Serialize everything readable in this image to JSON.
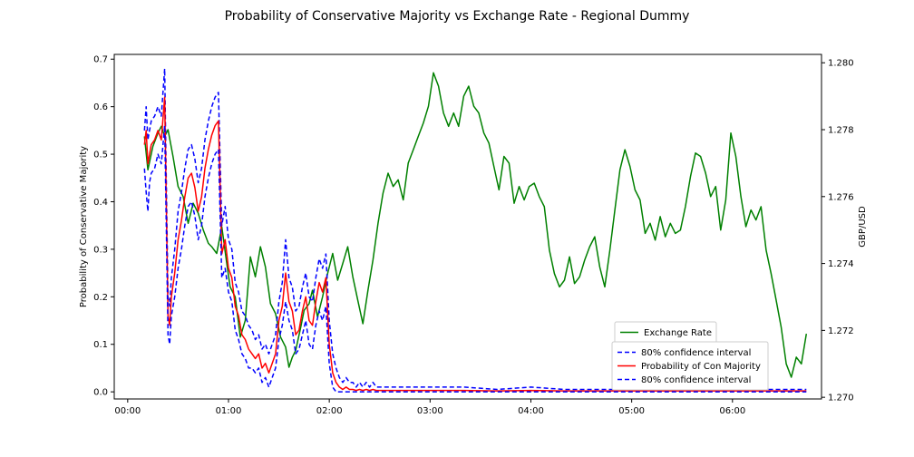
{
  "chart_data": {
    "type": "line",
    "title": "Probability of Conservative Majority vs Exchange Rate - Regional Dummy",
    "xlabel": "",
    "ylabel_left": "Probability of Conservative Majority",
    "ylabel_right": "GBP/USD",
    "xlim_minutes": [
      -8,
      413
    ],
    "x_ticks": [
      {
        "minutes": 0,
        "label": "00:00"
      },
      {
        "minutes": 60,
        "label": "01:00"
      },
      {
        "minutes": 120,
        "label": "02:00"
      },
      {
        "minutes": 180,
        "label": "03:00"
      },
      {
        "minutes": 240,
        "label": "04:00"
      },
      {
        "minutes": 300,
        "label": "05:00"
      },
      {
        "minutes": 360,
        "label": "06:00"
      }
    ],
    "ylim_left": [
      -0.015,
      0.71
    ],
    "y_ticks_left": [
      "0.0",
      "0.1",
      "0.2",
      "0.3",
      "0.4",
      "0.5",
      "0.6",
      "0.7"
    ],
    "ylim_right": [
      1.26995,
      1.28025
    ],
    "y_ticks_right": [
      "1.270",
      "1.272",
      "1.274",
      "1.276",
      "1.278",
      "1.280"
    ],
    "grid": false,
    "colors": {
      "exchange": "#008000",
      "probability": "#ff0000",
      "ci": "#0000ff"
    },
    "legend_upper": {
      "placement": "lower-right",
      "entries": [
        {
          "label": "Exchange Rate",
          "color": "#008000",
          "style": "solid"
        }
      ]
    },
    "legend_lower": {
      "placement": "lower-right",
      "entries": [
        {
          "label": "80% confidence interval",
          "color": "#0000ff",
          "style": "dashed"
        },
        {
          "label": "Probability of Con Majority",
          "color": "#ff0000",
          "style": "solid"
        },
        {
          "label": "80% confidence interval",
          "color": "#0000ff",
          "style": "dashed"
        }
      ]
    },
    "series": [
      {
        "name": "Exchange Rate",
        "axis": "right",
        "color": "#008000",
        "style": "solid",
        "x": [
          10,
          12,
          15,
          18,
          20,
          22,
          24,
          27,
          30,
          33,
          36,
          39,
          42,
          45,
          48,
          50,
          53,
          56,
          59,
          61,
          64,
          67,
          70,
          73,
          76,
          79,
          82,
          85,
          88,
          91,
          94,
          96,
          98,
          100,
          103,
          105,
          108,
          110,
          113,
          116,
          119,
          122,
          125,
          128,
          131,
          134,
          137,
          140,
          143,
          146,
          149,
          152,
          155,
          158,
          161,
          164,
          167,
          170,
          173,
          176,
          179,
          182,
          185,
          188,
          191,
          194,
          197,
          200,
          203,
          206,
          209,
          212,
          215,
          218,
          221,
          224,
          227,
          230,
          233,
          236,
          239,
          242,
          245,
          248,
          251,
          254,
          257,
          260,
          263,
          266,
          269,
          272,
          275,
          278,
          281,
          284,
          287,
          290,
          293,
          296,
          299,
          302,
          305,
          308,
          311,
          314,
          317,
          320,
          323,
          326,
          329,
          332,
          335,
          338,
          341,
          344,
          347,
          350,
          353,
          356,
          359,
          362,
          365,
          368,
          371,
          374,
          377,
          380,
          383,
          386,
          389,
          392,
          395,
          398,
          401,
          404
        ],
        "y": [
          1.2778,
          1.2768,
          1.2775,
          1.2779,
          1.2781,
          1.2778,
          1.278,
          1.2772,
          1.2763,
          1.276,
          1.2752,
          1.2758,
          1.2755,
          1.275,
          1.2746,
          1.2745,
          1.2743,
          1.2751,
          1.274,
          1.2733,
          1.273,
          1.2718,
          1.2723,
          1.2742,
          1.2736,
          1.2745,
          1.2739,
          1.2728,
          1.2725,
          1.2718,
          1.2715,
          1.2709,
          1.2712,
          1.2714,
          1.2721,
          1.2726,
          1.2728,
          1.2732,
          1.2724,
          1.273,
          1.2737,
          1.2743,
          1.2735,
          1.274,
          1.2745,
          1.2736,
          1.2729,
          1.2722,
          1.2732,
          1.2741,
          1.2752,
          1.2761,
          1.2767,
          1.2763,
          1.2765,
          1.2759,
          1.277,
          1.2774,
          1.2778,
          1.2782,
          1.2787,
          1.2797,
          1.2793,
          1.2785,
          1.2781,
          1.2785,
          1.2781,
          1.279,
          1.2793,
          1.2787,
          1.2785,
          1.2779,
          1.2776,
          1.2769,
          1.2762,
          1.2772,
          1.277,
          1.2758,
          1.2763,
          1.2759,
          1.2763,
          1.2764,
          1.276,
          1.2757,
          1.2744,
          1.2737,
          1.2733,
          1.2735,
          1.2742,
          1.2734,
          1.2736,
          1.2741,
          1.2745,
          1.2748,
          1.2739,
          1.2733,
          1.2744,
          1.2756,
          1.2768,
          1.2774,
          1.2769,
          1.2762,
          1.2759,
          1.2749,
          1.2752,
          1.2747,
          1.2754,
          1.2748,
          1.2752,
          1.2749,
          1.275,
          1.2757,
          1.2766,
          1.2773,
          1.2772,
          1.2767,
          1.276,
          1.2763,
          1.275,
          1.2759,
          1.2779,
          1.2772,
          1.276,
          1.2751,
          1.2756,
          1.2753,
          1.2757,
          1.2744,
          1.2737,
          1.2729,
          1.2721,
          1.271,
          1.2706,
          1.2712,
          1.271,
          1.2719
        ]
      },
      {
        "name": "80% confidence interval",
        "axis": "left",
        "color": "#0000ff",
        "style": "dashed",
        "x": [
          10,
          11,
          12,
          13,
          14,
          16,
          18,
          20,
          22,
          24,
          25,
          26,
          28,
          30,
          32,
          34,
          36,
          38,
          40,
          42,
          44,
          46,
          48,
          50,
          52,
          54,
          56,
          58,
          60,
          62,
          64,
          66,
          68,
          70,
          72,
          74,
          76,
          78,
          80,
          82,
          84,
          86,
          88,
          90,
          92,
          94,
          96,
          98,
          100,
          102,
          104,
          106,
          108,
          110,
          112,
          114,
          116,
          118,
          120,
          122,
          124,
          126,
          128,
          130,
          132,
          134,
          136,
          138,
          140,
          142,
          144,
          146,
          148,
          150,
          155,
          160,
          170,
          180,
          200,
          220,
          240,
          260,
          280,
          300,
          320,
          340,
          360,
          380,
          400,
          404
        ],
        "y": [
          0.55,
          0.6,
          0.53,
          0.55,
          0.57,
          0.58,
          0.6,
          0.58,
          0.68,
          0.2,
          0.18,
          0.24,
          0.3,
          0.38,
          0.42,
          0.47,
          0.51,
          0.52,
          0.49,
          0.44,
          0.47,
          0.53,
          0.57,
          0.6,
          0.62,
          0.63,
          0.35,
          0.39,
          0.32,
          0.3,
          0.23,
          0.21,
          0.17,
          0.16,
          0.14,
          0.13,
          0.11,
          0.12,
          0.09,
          0.1,
          0.08,
          0.1,
          0.12,
          0.19,
          0.23,
          0.32,
          0.24,
          0.22,
          0.17,
          0.18,
          0.22,
          0.25,
          0.2,
          0.19,
          0.24,
          0.28,
          0.26,
          0.29,
          0.15,
          0.08,
          0.05,
          0.03,
          0.02,
          0.03,
          0.02,
          0.02,
          0.01,
          0.02,
          0.01,
          0.02,
          0.01,
          0.02,
          0.01,
          0.01,
          0.01,
          0.01,
          0.01,
          0.01,
          0.01,
          0.005,
          0.01,
          0.005,
          0.005,
          0.005,
          0.005,
          0.005,
          0.005,
          0.005,
          0.005,
          0.005
        ]
      },
      {
        "name": "Probability of Con Majority",
        "axis": "left",
        "color": "#ff0000",
        "style": "solid",
        "x": [
          10,
          11,
          12,
          13,
          14,
          16,
          18,
          20,
          22,
          24,
          25,
          26,
          28,
          30,
          32,
          34,
          36,
          38,
          40,
          42,
          44,
          46,
          48,
          50,
          52,
          54,
          56,
          58,
          60,
          62,
          64,
          66,
          68,
          70,
          72,
          74,
          76,
          78,
          80,
          82,
          84,
          86,
          88,
          90,
          92,
          94,
          96,
          98,
          100,
          102,
          104,
          106,
          108,
          110,
          112,
          114,
          116,
          118,
          120,
          122,
          124,
          126,
          128,
          130,
          132,
          134,
          136,
          138,
          140,
          142,
          144,
          146,
          148,
          150,
          155,
          160,
          170,
          180,
          200,
          220,
          240,
          260,
          280,
          300,
          320,
          340,
          360,
          380,
          400,
          404
        ],
        "y": [
          0.52,
          0.55,
          0.48,
          0.5,
          0.52,
          0.53,
          0.55,
          0.53,
          0.62,
          0.16,
          0.14,
          0.2,
          0.25,
          0.32,
          0.36,
          0.41,
          0.45,
          0.46,
          0.43,
          0.38,
          0.41,
          0.47,
          0.51,
          0.54,
          0.56,
          0.57,
          0.29,
          0.32,
          0.26,
          0.24,
          0.18,
          0.16,
          0.12,
          0.11,
          0.09,
          0.08,
          0.07,
          0.08,
          0.05,
          0.06,
          0.04,
          0.06,
          0.08,
          0.15,
          0.18,
          0.25,
          0.19,
          0.17,
          0.12,
          0.13,
          0.17,
          0.2,
          0.15,
          0.14,
          0.19,
          0.23,
          0.21,
          0.24,
          0.1,
          0.04,
          0.02,
          0.01,
          0.005,
          0.01,
          0.005,
          0.005,
          0.003,
          0.005,
          0.003,
          0.005,
          0.003,
          0.005,
          0.003,
          0.003,
          0.003,
          0.003,
          0.003,
          0.003,
          0.003,
          0.002,
          0.003,
          0.002,
          0.002,
          0.002,
          0.002,
          0.002,
          0.002,
          0.002,
          0.002,
          0.002
        ]
      },
      {
        "name": "80% confidence interval",
        "axis": "left",
        "color": "#0000ff",
        "style": "dashed",
        "x": [
          10,
          11,
          12,
          13,
          14,
          16,
          18,
          20,
          22,
          24,
          25,
          26,
          28,
          30,
          32,
          34,
          36,
          38,
          40,
          42,
          44,
          46,
          48,
          50,
          52,
          54,
          56,
          58,
          60,
          62,
          64,
          66,
          68,
          70,
          72,
          74,
          76,
          78,
          80,
          82,
          84,
          86,
          88,
          90,
          92,
          94,
          96,
          98,
          100,
          102,
          104,
          106,
          108,
          110,
          112,
          114,
          116,
          118,
          120,
          122,
          124,
          126,
          128,
          130,
          132,
          134,
          136,
          138,
          140,
          142,
          144,
          146,
          148,
          150,
          155,
          160,
          170,
          180,
          200,
          220,
          240,
          260,
          280,
          300,
          320,
          340,
          360,
          380,
          400,
          404
        ],
        "y": [
          0.47,
          0.42,
          0.38,
          0.44,
          0.46,
          0.47,
          0.5,
          0.48,
          0.56,
          0.12,
          0.1,
          0.16,
          0.2,
          0.26,
          0.3,
          0.35,
          0.39,
          0.4,
          0.37,
          0.32,
          0.35,
          0.41,
          0.45,
          0.48,
          0.5,
          0.51,
          0.24,
          0.26,
          0.21,
          0.19,
          0.13,
          0.11,
          0.08,
          0.07,
          0.05,
          0.05,
          0.04,
          0.05,
          0.02,
          0.03,
          0.01,
          0.03,
          0.05,
          0.11,
          0.14,
          0.19,
          0.15,
          0.13,
          0.08,
          0.09,
          0.12,
          0.15,
          0.1,
          0.09,
          0.14,
          0.17,
          0.15,
          0.18,
          0.06,
          0.01,
          0.0,
          0.0,
          0.0,
          0.0,
          0.0,
          0.0,
          0.0,
          0.0,
          0.0,
          0.0,
          0.0,
          0.0,
          0.0,
          0.0,
          0.0,
          0.0,
          0.0,
          0.0,
          0.0,
          0.0,
          0.0,
          0.0,
          0.0,
          0.0,
          0.0,
          0.0,
          0.0,
          0.0,
          0.0,
          0.0
        ]
      }
    ]
  }
}
